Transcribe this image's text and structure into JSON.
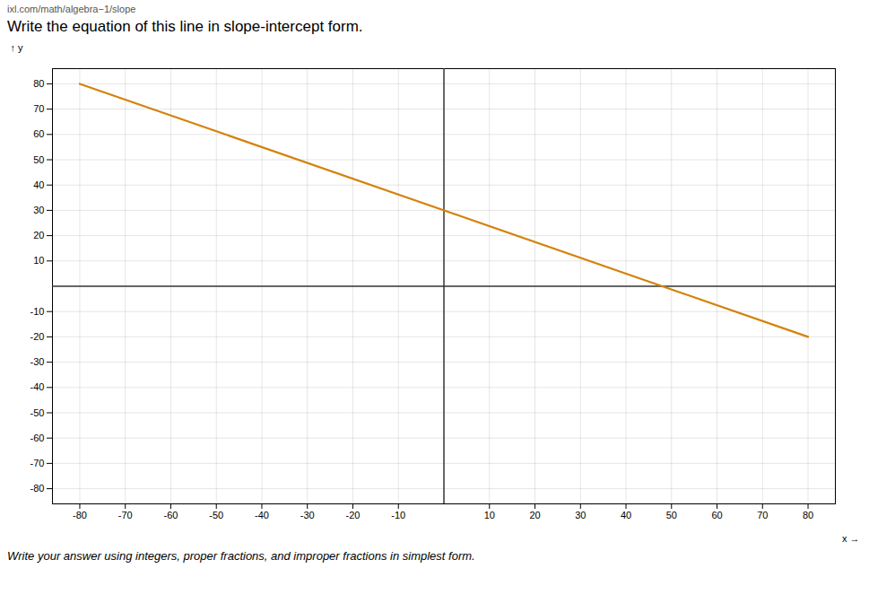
{
  "chart_data": {
    "type": "line",
    "title": "Write the equation of this line in slope-intercept form.",
    "subtitle": "Write your answer using integers, proper fractions, and improper fractions in simplest form.",
    "header": "ixl.com/math/algebra−1/slope",
    "x": [
      -80,
      80
    ],
    "values": [
      80,
      -20
    ],
    "color": "#D4820A",
    "x_label": "x",
    "y_label": "y",
    "xlim": [
      -86,
      86
    ],
    "ylim": [
      -86,
      86
    ],
    "xticks": [
      -80,
      -70,
      -60,
      -50,
      -40,
      -30,
      -20,
      -10,
      10,
      20,
      30,
      40,
      50,
      60,
      70,
      80
    ],
    "yticks": [
      -80,
      -70,
      -60,
      -50,
      -40,
      -30,
      -20,
      -10,
      10,
      20,
      30,
      40,
      50,
      60,
      70,
      80
    ],
    "grid": true
  }
}
